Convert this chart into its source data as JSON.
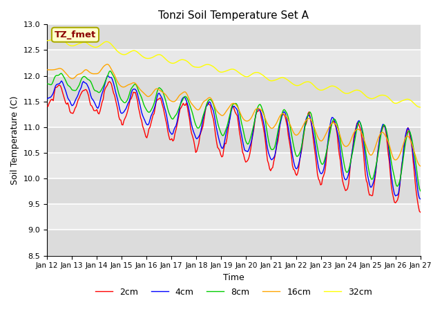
{
  "title": "Tonzi Soil Temperature Set A",
  "xlabel": "Time",
  "ylabel": "Soil Temperature (C)",
  "ylim": [
    8.5,
    13.0
  ],
  "yticks": [
    8.5,
    9.0,
    9.5,
    10.0,
    10.5,
    11.0,
    11.5,
    12.0,
    12.5,
    13.0
  ],
  "x_labels": [
    "Jan 12",
    "Jan 13",
    "Jan 14",
    "Jan 15",
    "Jan 16",
    "Jan 17",
    "Jan 18",
    "Jan 19",
    "Jan 20",
    "Jan 21",
    "Jan 22",
    "Jan 23",
    "Jan 24",
    "Jan 25",
    "Jan 26",
    "Jan 27"
  ],
  "annotation_text": "TZ_fmet",
  "annotation_color": "#8B0000",
  "annotation_bg": "#FFFFCC",
  "colors": {
    "2cm": "#FF0000",
    "4cm": "#0000FF",
    "8cm": "#00CC00",
    "16cm": "#FFA500",
    "32cm": "#FFFF00"
  },
  "line_width": 1.0,
  "plot_bg": "#E8E8E8",
  "grid_color": "#FFFFFF",
  "stripe_light": "#DCDCDC",
  "stripe_dark": "#E8E8E8"
}
